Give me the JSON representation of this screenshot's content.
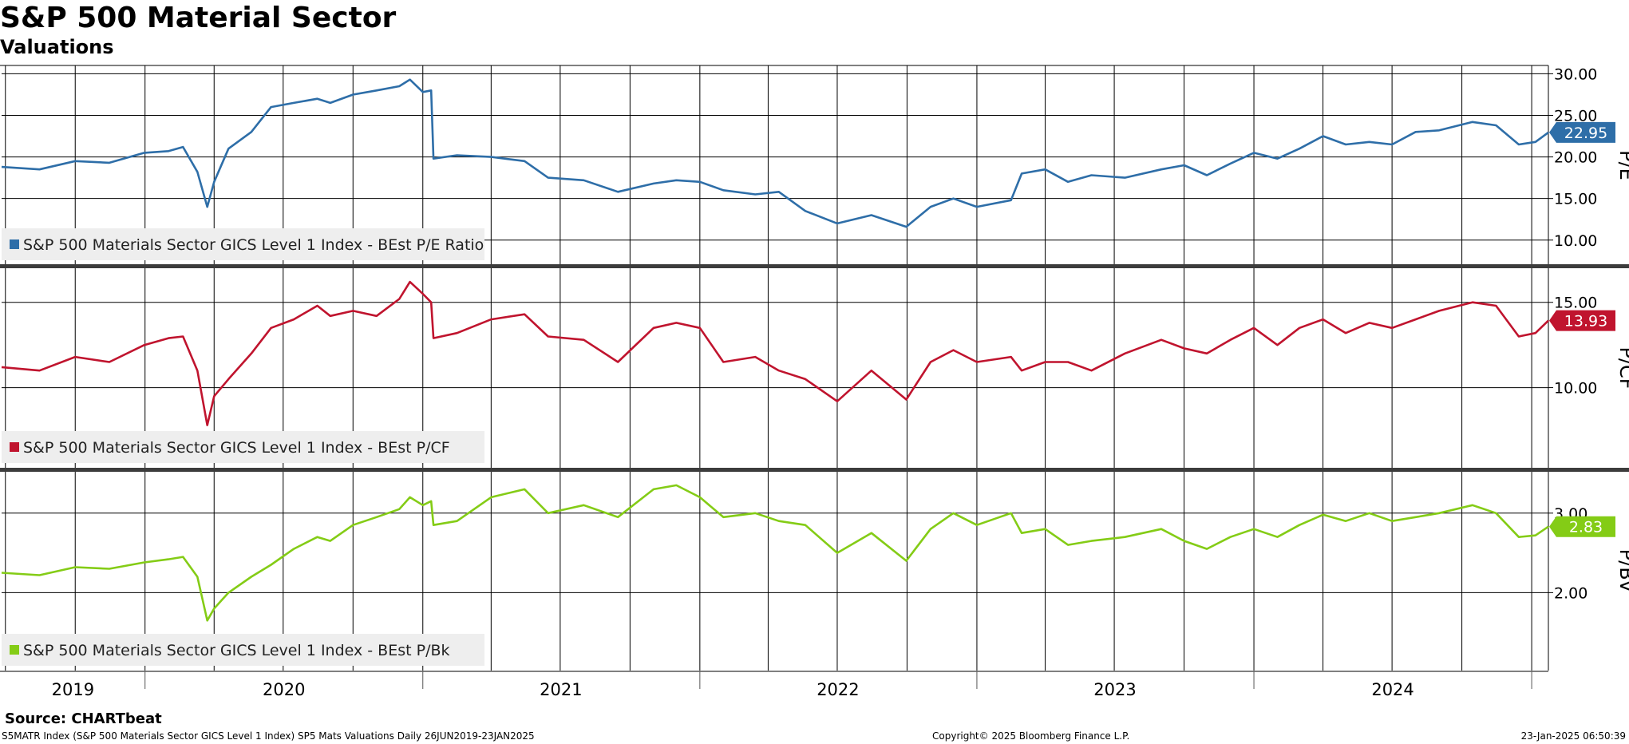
{
  "header": {
    "title": "S&P 500 Material Sector",
    "subtitle": "Valuations"
  },
  "footer": {
    "source": "Source: CHARTbeat",
    "ticker_info": "S5MATR Index (S&P 500 Materials Sector GICS Level 1 Index) SP5 Mats Valuations  Daily 26JUN2019-23JAN2025",
    "copyright": "Copyright© 2025 Bloomberg Finance L.P.",
    "timestamp": "23-Jan-2025 06:50:39"
  },
  "chart_data": {
    "type": "line",
    "title": "S&P 500 Material Sector",
    "subtitle": "Valuations",
    "x_range": [
      "2019-06-26",
      "2025-01-23"
    ],
    "x_tick_labels": [
      "2019",
      "2020",
      "2021",
      "2022",
      "2023",
      "2024"
    ],
    "grid": true,
    "legend_placement": "bottom-left of each panel",
    "panels": [
      {
        "id": "pe",
        "ylabel": "P/E",
        "ylim": [
          7,
          31
        ],
        "yticks": [
          10,
          15,
          20,
          25,
          30
        ],
        "ytick_labels": [
          "10.00",
          "15.00",
          "20.00",
          "25.00",
          "30.00"
        ],
        "last_value_label": "22.95",
        "series": [
          {
            "name": "S&P 500 Materials Sector GICS Level 1 Index - BEst P/E Ratio",
            "color": "#2e6ea8",
            "points": [
              [
                "2019-06-26",
                18.8
              ],
              [
                "2019-08-15",
                18.5
              ],
              [
                "2019-10-01",
                19.5
              ],
              [
                "2019-11-15",
                19.3
              ],
              [
                "2019-12-31",
                20.5
              ],
              [
                "2020-02-01",
                20.7
              ],
              [
                "2020-02-20",
                21.2
              ],
              [
                "2020-03-10",
                18.2
              ],
              [
                "2020-03-23",
                14.0
              ],
              [
                "2020-04-01",
                17.0
              ],
              [
                "2020-04-20",
                21.0
              ],
              [
                "2020-05-20",
                23.0
              ],
              [
                "2020-06-15",
                26.0
              ],
              [
                "2020-07-15",
                26.5
              ],
              [
                "2020-08-15",
                27.0
              ],
              [
                "2020-09-01",
                26.5
              ],
              [
                "2020-10-01",
                27.5
              ],
              [
                "2020-11-01",
                28.0
              ],
              [
                "2020-12-01",
                28.5
              ],
              [
                "2020-12-15",
                29.3
              ],
              [
                "2021-01-01",
                27.8
              ],
              [
                "2021-01-12",
                28.0
              ],
              [
                "2021-01-15",
                19.8
              ],
              [
                "2021-02-15",
                20.2
              ],
              [
                "2021-04-01",
                20.0
              ],
              [
                "2021-05-15",
                19.5
              ],
              [
                "2021-06-15",
                17.5
              ],
              [
                "2021-08-01",
                17.2
              ],
              [
                "2021-09-15",
                15.8
              ],
              [
                "2021-11-01",
                16.8
              ],
              [
                "2021-12-01",
                17.2
              ],
              [
                "2022-01-01",
                17.0
              ],
              [
                "2022-02-01",
                16.0
              ],
              [
                "2022-03-15",
                15.5
              ],
              [
                "2022-04-15",
                15.8
              ],
              [
                "2022-05-20",
                13.5
              ],
              [
                "2022-07-01",
                12.0
              ],
              [
                "2022-08-15",
                13.0
              ],
              [
                "2022-09-30",
                11.6
              ],
              [
                "2022-11-01",
                14.0
              ],
              [
                "2022-12-01",
                15.0
              ],
              [
                "2023-01-01",
                14.0
              ],
              [
                "2023-02-15",
                14.8
              ],
              [
                "2023-03-01",
                18.0
              ],
              [
                "2023-04-01",
                18.5
              ],
              [
                "2023-05-01",
                17.0
              ],
              [
                "2023-06-01",
                17.8
              ],
              [
                "2023-07-15",
                17.5
              ],
              [
                "2023-09-01",
                18.5
              ],
              [
                "2023-10-01",
                19.0
              ],
              [
                "2023-10-31",
                17.8
              ],
              [
                "2023-12-01",
                19.2
              ],
              [
                "2024-01-01",
                20.5
              ],
              [
                "2024-02-01",
                19.8
              ],
              [
                "2024-03-01",
                21.0
              ],
              [
                "2024-04-01",
                22.5
              ],
              [
                "2024-05-01",
                21.5
              ],
              [
                "2024-06-01",
                21.8
              ],
              [
                "2024-07-01",
                21.5
              ],
              [
                "2024-08-01",
                23.0
              ],
              [
                "2024-09-01",
                23.2
              ],
              [
                "2024-10-15",
                24.2
              ],
              [
                "2024-11-15",
                23.8
              ],
              [
                "2024-12-15",
                21.5
              ],
              [
                "2025-01-06",
                21.8
              ],
              [
                "2025-01-23",
                22.95
              ]
            ]
          }
        ]
      },
      {
        "id": "pcf",
        "ylabel": "P/CF",
        "ylim": [
          5.3,
          17
        ],
        "yticks": [
          10,
          15
        ],
        "ytick_labels": [
          "10.00",
          "15.00"
        ],
        "last_value_label": "13.93",
        "series": [
          {
            "name": "S&P 500 Materials Sector GICS Level 1 Index - BEst P/CF",
            "color": "#c0142e",
            "points": [
              [
                "2019-06-26",
                11.2
              ],
              [
                "2019-08-15",
                11.0
              ],
              [
                "2019-10-01",
                11.8
              ],
              [
                "2019-11-15",
                11.5
              ],
              [
                "2019-12-31",
                12.5
              ],
              [
                "2020-02-01",
                12.9
              ],
              [
                "2020-02-20",
                13.0
              ],
              [
                "2020-03-10",
                11.0
              ],
              [
                "2020-03-23",
                7.8
              ],
              [
                "2020-04-01",
                9.5
              ],
              [
                "2020-04-20",
                10.5
              ],
              [
                "2020-05-20",
                12.0
              ],
              [
                "2020-06-15",
                13.5
              ],
              [
                "2020-07-15",
                14.0
              ],
              [
                "2020-08-15",
                14.8
              ],
              [
                "2020-09-01",
                14.2
              ],
              [
                "2020-10-01",
                14.5
              ],
              [
                "2020-11-01",
                14.2
              ],
              [
                "2020-12-01",
                15.2
              ],
              [
                "2020-12-15",
                16.2
              ],
              [
                "2021-01-01",
                15.5
              ],
              [
                "2021-01-12",
                15.0
              ],
              [
                "2021-01-15",
                12.9
              ],
              [
                "2021-02-15",
                13.2
              ],
              [
                "2021-04-01",
                14.0
              ],
              [
                "2021-05-15",
                14.3
              ],
              [
                "2021-06-15",
                13.0
              ],
              [
                "2021-08-01",
                12.8
              ],
              [
                "2021-09-15",
                11.5
              ],
              [
                "2021-11-01",
                13.5
              ],
              [
                "2021-12-01",
                13.8
              ],
              [
                "2022-01-01",
                13.5
              ],
              [
                "2022-02-01",
                11.5
              ],
              [
                "2022-03-15",
                11.8
              ],
              [
                "2022-04-15",
                11.0
              ],
              [
                "2022-05-20",
                10.5
              ],
              [
                "2022-07-01",
                9.2
              ],
              [
                "2022-08-15",
                11.0
              ],
              [
                "2022-09-30",
                9.3
              ],
              [
                "2022-11-01",
                11.5
              ],
              [
                "2022-12-01",
                12.2
              ],
              [
                "2023-01-01",
                11.5
              ],
              [
                "2023-02-15",
                11.8
              ],
              [
                "2023-03-01",
                11.0
              ],
              [
                "2023-04-01",
                11.5
              ],
              [
                "2023-05-01",
                11.5
              ],
              [
                "2023-06-01",
                11.0
              ],
              [
                "2023-07-15",
                12.0
              ],
              [
                "2023-09-01",
                12.8
              ],
              [
                "2023-10-01",
                12.3
              ],
              [
                "2023-10-31",
                12.0
              ],
              [
                "2023-12-01",
                12.8
              ],
              [
                "2024-01-01",
                13.5
              ],
              [
                "2024-02-01",
                12.5
              ],
              [
                "2024-03-01",
                13.5
              ],
              [
                "2024-04-01",
                14.0
              ],
              [
                "2024-05-01",
                13.2
              ],
              [
                "2024-06-01",
                13.8
              ],
              [
                "2024-07-01",
                13.5
              ],
              [
                "2024-08-01",
                14.0
              ],
              [
                "2024-09-01",
                14.5
              ],
              [
                "2024-10-15",
                15.0
              ],
              [
                "2024-11-15",
                14.8
              ],
              [
                "2024-12-15",
                13.0
              ],
              [
                "2025-01-06",
                13.2
              ],
              [
                "2025-01-23",
                13.93
              ]
            ]
          }
        ]
      },
      {
        "id": "pbv",
        "ylabel": "P/BV",
        "ylim": [
          1.02,
          3.53
        ],
        "yticks": [
          2,
          3
        ],
        "ytick_labels": [
          "2.00",
          "3.00"
        ],
        "last_value_label": "2.83",
        "series": [
          {
            "name": "S&P 500 Materials Sector GICS Level 1 Index - BEst P/Bk",
            "color": "#84cc16",
            "points": [
              [
                "2019-06-26",
                2.25
              ],
              [
                "2019-08-15",
                2.22
              ],
              [
                "2019-10-01",
                2.32
              ],
              [
                "2019-11-15",
                2.3
              ],
              [
                "2019-12-31",
                2.38
              ],
              [
                "2020-02-01",
                2.42
              ],
              [
                "2020-02-20",
                2.45
              ],
              [
                "2020-03-10",
                2.2
              ],
              [
                "2020-03-23",
                1.65
              ],
              [
                "2020-04-01",
                1.8
              ],
              [
                "2020-04-20",
                2.0
              ],
              [
                "2020-05-20",
                2.2
              ],
              [
                "2020-06-15",
                2.35
              ],
              [
                "2020-07-15",
                2.55
              ],
              [
                "2020-08-15",
                2.7
              ],
              [
                "2020-09-01",
                2.65
              ],
              [
                "2020-10-01",
                2.85
              ],
              [
                "2020-11-01",
                2.95
              ],
              [
                "2020-12-01",
                3.05
              ],
              [
                "2020-12-15",
                3.2
              ],
              [
                "2021-01-01",
                3.1
              ],
              [
                "2021-01-12",
                3.15
              ],
              [
                "2021-01-15",
                2.85
              ],
              [
                "2021-02-15",
                2.9
              ],
              [
                "2021-04-01",
                3.2
              ],
              [
                "2021-05-15",
                3.3
              ],
              [
                "2021-06-15",
                3.0
              ],
              [
                "2021-08-01",
                3.1
              ],
              [
                "2021-09-15",
                2.95
              ],
              [
                "2021-11-01",
                3.3
              ],
              [
                "2021-12-01",
                3.35
              ],
              [
                "2022-01-01",
                3.2
              ],
              [
                "2022-02-01",
                2.95
              ],
              [
                "2022-03-15",
                3.0
              ],
              [
                "2022-04-15",
                2.9
              ],
              [
                "2022-05-20",
                2.85
              ],
              [
                "2022-07-01",
                2.5
              ],
              [
                "2022-08-15",
                2.75
              ],
              [
                "2022-09-30",
                2.4
              ],
              [
                "2022-11-01",
                2.8
              ],
              [
                "2022-12-01",
                3.0
              ],
              [
                "2023-01-01",
                2.85
              ],
              [
                "2023-02-15",
                3.0
              ],
              [
                "2023-03-01",
                2.75
              ],
              [
                "2023-04-01",
                2.8
              ],
              [
                "2023-05-01",
                2.6
              ],
              [
                "2023-06-01",
                2.65
              ],
              [
                "2023-07-15",
                2.7
              ],
              [
                "2023-09-01",
                2.8
              ],
              [
                "2023-10-01",
                2.65
              ],
              [
                "2023-10-31",
                2.55
              ],
              [
                "2023-12-01",
                2.7
              ],
              [
                "2024-01-01",
                2.8
              ],
              [
                "2024-02-01",
                2.7
              ],
              [
                "2024-03-01",
                2.85
              ],
              [
                "2024-04-01",
                2.98
              ],
              [
                "2024-05-01",
                2.9
              ],
              [
                "2024-06-01",
                3.0
              ],
              [
                "2024-07-01",
                2.9
              ],
              [
                "2024-08-01",
                2.95
              ],
              [
                "2024-09-01",
                3.0
              ],
              [
                "2024-10-15",
                3.1
              ],
              [
                "2024-11-15",
                3.0
              ],
              [
                "2024-12-15",
                2.7
              ],
              [
                "2025-01-06",
                2.72
              ],
              [
                "2025-01-23",
                2.83
              ]
            ]
          }
        ]
      }
    ]
  }
}
